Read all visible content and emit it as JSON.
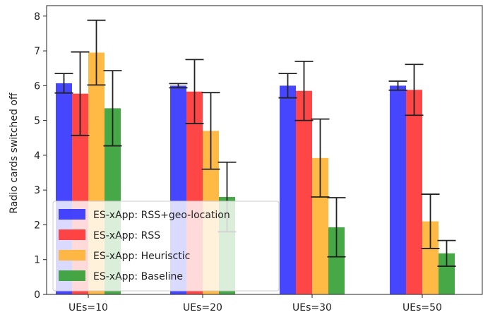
{
  "chart_data": {
    "type": "bar",
    "title": "",
    "xlabel": "",
    "ylabel": "Radio cards switched off",
    "ylim": [
      0,
      8.3
    ],
    "yticks": [
      0,
      1,
      2,
      3,
      4,
      5,
      6,
      7,
      8
    ],
    "categories": [
      "UEs=10",
      "UEs=20",
      "UEs=30",
      "UEs=50"
    ],
    "grid": false,
    "legend_position": "lower-left",
    "series": [
      {
        "name": "ES-xApp: RSS+geo-location",
        "color": "#3232ff",
        "values": [
          6.07,
          6.0,
          6.0,
          6.0
        ],
        "errors": [
          0.28,
          0.06,
          0.35,
          0.13
        ]
      },
      {
        "name": "ES-xApp: RSS",
        "color": "#ff3232",
        "values": [
          5.77,
          5.83,
          5.85,
          5.88
        ],
        "errors": [
          1.2,
          0.92,
          0.85,
          0.73
        ]
      },
      {
        "name": "ES-xApp: Heurisctic",
        "color": "#ffb232",
        "values": [
          6.95,
          4.7,
          3.92,
          2.1
        ],
        "errors": [
          0.93,
          1.1,
          1.12,
          0.78
        ]
      },
      {
        "name": "ES-xApp: Baseline",
        "color": "#329f32",
        "values": [
          5.35,
          2.8,
          1.93,
          1.18
        ],
        "errors": [
          1.08,
          1.0,
          0.85,
          0.37
        ]
      }
    ]
  }
}
